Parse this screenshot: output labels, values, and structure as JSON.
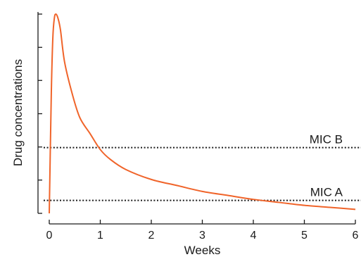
{
  "chart_data": {
    "type": "line",
    "title": "",
    "xlabel": "Weeks",
    "ylabel": "Drug concentrations",
    "xlim": [
      0,
      6
    ],
    "ylim": [
      0,
      100
    ],
    "x_ticks": [
      0,
      1,
      2,
      3,
      4,
      5,
      6
    ],
    "x_tick_labels": [
      "0",
      "1",
      "2",
      "3",
      "4",
      "5",
      "6"
    ],
    "y_ticks": [
      0,
      16.7,
      33.3,
      50,
      66.7,
      83.3,
      100
    ],
    "grid": false,
    "legend": "none",
    "series": [
      {
        "color": "#f0642a",
        "x": [
          0,
          0.04,
          0.07,
          0.1,
          0.13,
          0.17,
          0.22,
          0.3,
          0.45,
          0.6,
          0.8,
          1.0,
          1.2,
          1.5,
          2.0,
          2.5,
          3.0,
          3.5,
          4.0,
          4.5,
          5.0,
          5.5,
          6.0
        ],
        "y": [
          0,
          60,
          88,
          98,
          100,
          98,
          92,
          76,
          60,
          48,
          40,
          32,
          27,
          22,
          17,
          14,
          11,
          9,
          7,
          5.5,
          4,
          3,
          2
        ]
      }
    ],
    "reference_lines": [
      {
        "label": "MIC B",
        "y": 33,
        "style": "dotted"
      },
      {
        "label": "MIC A",
        "y": 6.5,
        "style": "dotted"
      }
    ]
  }
}
